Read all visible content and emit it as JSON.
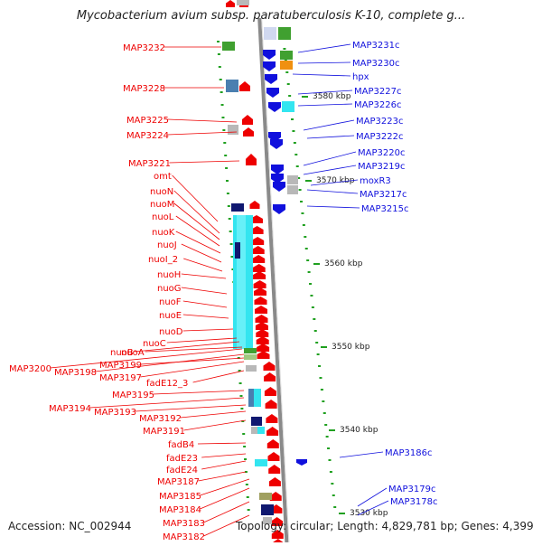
{
  "title": "Mycobacterium avium subsp. paratuberculosis K-10, complete g...",
  "accession": "Accession: NC_002944",
  "topology": "Topology: circular; Length: 4,829,781 bp; Genes: 4,399",
  "colors": {
    "left_strand": "#ee0000",
    "right_strand": "#1010dd",
    "feature_cyan": "#33e5f0",
    "feature_navy": "#101870",
    "feature_green": "#40a030",
    "feature_gray": "#b8b8b8",
    "feature_orange": "#f09010",
    "feature_steel": "#4a7fb0",
    "feature_olive": "#a0a060",
    "backbone": "#8a8a8a",
    "tick": "#20a020"
  },
  "kbp_marks": [
    "3580 kbp",
    "3570 kbp",
    "3560 kbp",
    "3550 kbp",
    "3540 kbp",
    "3530 kbp"
  ],
  "left_genes": [
    "MAP3232",
    "MAP3228",
    "MAP3225",
    "MAP3224",
    "MAP3221",
    "omt",
    "nuoN",
    "nuoM",
    "nuoL",
    "nuoK",
    "nuoJ",
    "nuoI_2",
    "nuoH",
    "nuoG",
    "nuoF",
    "nuoE",
    "nuoD",
    "nuoC",
    "nuoB",
    "nuoA",
    "MAP3200",
    "MAP3198",
    "MAP3199",
    "MAP3197",
    "fadE12_3",
    "MAP3195",
    "MAP3194",
    "MAP3193",
    "MAP3192",
    "MAP3191",
    "fadB4",
    "fadE23",
    "fadE24",
    "MAP3187",
    "MAP3185",
    "MAP3184",
    "MAP3183",
    "MAP3182"
  ],
  "right_genes": [
    "MAP3231c",
    "MAP3230c",
    "hpx",
    "MAP3227c",
    "MAP3226c",
    "MAP3223c",
    "MAP3222c",
    "MAP3220c",
    "MAP3219c",
    "moxR3",
    "MAP3217c",
    "MAP3215c",
    "MAP3186c",
    "MAP3179c",
    "MAP3178c"
  ]
}
